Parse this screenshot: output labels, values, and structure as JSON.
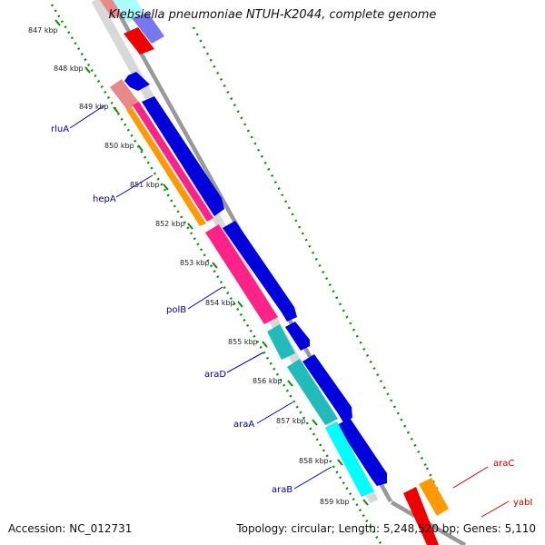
{
  "title": "Klebsiella pneumoniae NTUH-K2044, complete genome",
  "footer": {
    "accession": "Accession: NC_012731",
    "summary": "Topology: circular; Length: 5,248,520 bp; Genes: 5,110"
  },
  "colors": {
    "backbone": "#999999",
    "tick_dots": "#118811",
    "label_blue": "#0000aa",
    "label_red": "#cc0000",
    "cds_blue": "#0000dd"
  },
  "kbp_ticks": [
    "847 kbp",
    "848 kbp",
    "849 kbp",
    "850 kbp",
    "851 kbp",
    "852 kbp",
    "853 kbp",
    "854 kbp",
    "855 kbp",
    "856 kbp",
    "857 kbp",
    "858 kbp",
    "859 kbp"
  ],
  "genes": [
    {
      "name": "rluA",
      "color": "#e88888"
    },
    {
      "name": "hepA",
      "color": "#ff9900"
    },
    {
      "name": "polB",
      "color": "#ff2288"
    },
    {
      "name": "araD",
      "color": "#22bbbb"
    },
    {
      "name": "araA",
      "color": "#22bbbb"
    },
    {
      "name": "araB",
      "color": "#00ffff"
    },
    {
      "name": "araC",
      "color": "#ff9900"
    },
    {
      "name": "yabI",
      "color": "#ee0000"
    }
  ]
}
